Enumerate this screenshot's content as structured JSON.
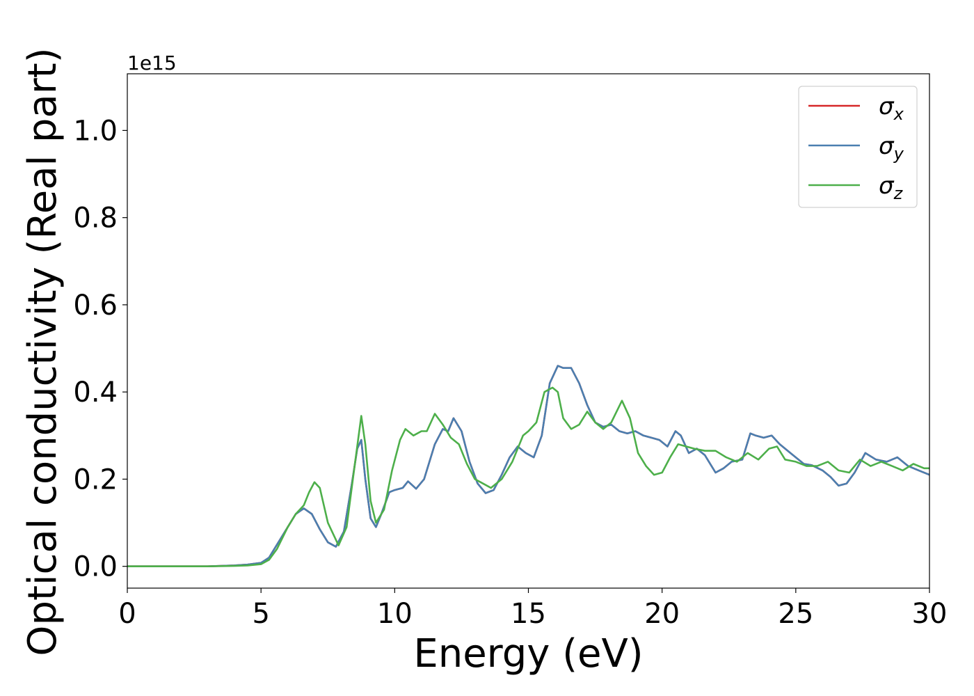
{
  "chart_data": {
    "type": "line",
    "xlabel": "Energy (eV)",
    "ylabel": "Optical conductivity (Real part)",
    "y_offset_text": "1e15",
    "xlim": [
      0,
      30
    ],
    "ylim": [
      -0.05,
      1.13
    ],
    "x_ticks": [
      0,
      5,
      10,
      15,
      20,
      25,
      30
    ],
    "x_tick_labels": [
      "0",
      "5",
      "10",
      "15",
      "20",
      "25",
      "30"
    ],
    "y_ticks": [
      0.0,
      0.2,
      0.4,
      0.6,
      0.8,
      1.0
    ],
    "y_tick_labels": [
      "0.0",
      "0.2",
      "0.4",
      "0.6",
      "0.8",
      "1.0"
    ],
    "grid": false,
    "legend_position": "top-right",
    "series": [
      {
        "name": "σx",
        "symbol": "σ",
        "subscript": "x",
        "color": "#d62728",
        "x": [
          0,
          1,
          2,
          3,
          4,
          4.5,
          5,
          5.3,
          5.6,
          6.0,
          6.3,
          6.6,
          6.9,
          7.2,
          7.5,
          7.8,
          8.1,
          8.4,
          8.6,
          8.75,
          8.9,
          9.1,
          9.3,
          9.5,
          9.8,
          10.0,
          10.3,
          10.5,
          10.8,
          11.1,
          11.5,
          11.8,
          12.0,
          12.2,
          12.5,
          12.8,
          13.1,
          13.4,
          13.7,
          14.0,
          14.3,
          14.6,
          14.9,
          15.2,
          15.5,
          15.8,
          16.1,
          16.3,
          16.6,
          16.9,
          17.2,
          17.5,
          17.8,
          18.1,
          18.4,
          18.7,
          19.0,
          19.3,
          19.6,
          19.9,
          20.2,
          20.5,
          20.7,
          21.0,
          21.3,
          21.6,
          22.0,
          22.3,
          22.6,
          23.0,
          23.3,
          23.5,
          23.8,
          24.1,
          24.4,
          24.7,
          25.0,
          25.3,
          25.6,
          26.0,
          26.3,
          26.6,
          26.9,
          27.2,
          27.6,
          28.0,
          28.4,
          28.8,
          29.2,
          29.6,
          30.0
        ],
        "values": [
          0,
          0,
          0,
          0,
          0.002,
          0.004,
          0.008,
          0.02,
          0.05,
          0.09,
          0.12,
          0.133,
          0.12,
          0.085,
          0.055,
          0.045,
          0.08,
          0.19,
          0.27,
          0.29,
          0.2,
          0.11,
          0.09,
          0.12,
          0.17,
          0.175,
          0.18,
          0.195,
          0.178,
          0.2,
          0.28,
          0.315,
          0.31,
          0.34,
          0.31,
          0.24,
          0.19,
          0.168,
          0.175,
          0.21,
          0.25,
          0.275,
          0.26,
          0.25,
          0.3,
          0.42,
          0.46,
          0.455,
          0.455,
          0.42,
          0.37,
          0.33,
          0.32,
          0.325,
          0.31,
          0.305,
          0.31,
          0.3,
          0.295,
          0.29,
          0.275,
          0.31,
          0.3,
          0.26,
          0.27,
          0.255,
          0.215,
          0.225,
          0.24,
          0.245,
          0.305,
          0.3,
          0.295,
          0.3,
          0.28,
          0.265,
          0.25,
          0.235,
          0.232,
          0.22,
          0.205,
          0.185,
          0.19,
          0.215,
          0.26,
          0.245,
          0.24,
          0.25,
          0.23,
          0.22,
          0.21
        ]
      },
      {
        "name": "σy",
        "symbol": "σ",
        "subscript": "y",
        "color": "#4a7fb0",
        "x": [
          0,
          1,
          2,
          3,
          4,
          4.5,
          5,
          5.3,
          5.6,
          6.0,
          6.3,
          6.6,
          6.9,
          7.2,
          7.5,
          7.8,
          8.1,
          8.4,
          8.6,
          8.75,
          8.9,
          9.1,
          9.3,
          9.5,
          9.8,
          10.0,
          10.3,
          10.5,
          10.8,
          11.1,
          11.5,
          11.8,
          12.0,
          12.2,
          12.5,
          12.8,
          13.1,
          13.4,
          13.7,
          14.0,
          14.3,
          14.6,
          14.9,
          15.2,
          15.5,
          15.8,
          16.1,
          16.3,
          16.6,
          16.9,
          17.2,
          17.5,
          17.8,
          18.1,
          18.4,
          18.7,
          19.0,
          19.3,
          19.6,
          19.9,
          20.2,
          20.5,
          20.7,
          21.0,
          21.3,
          21.6,
          22.0,
          22.3,
          22.6,
          23.0,
          23.3,
          23.5,
          23.8,
          24.1,
          24.4,
          24.7,
          25.0,
          25.3,
          25.6,
          26.0,
          26.3,
          26.6,
          26.9,
          27.2,
          27.6,
          28.0,
          28.4,
          28.8,
          29.2,
          29.6,
          30.0
        ],
        "values": [
          0,
          0,
          0,
          0,
          0.002,
          0.004,
          0.008,
          0.02,
          0.05,
          0.09,
          0.12,
          0.133,
          0.12,
          0.085,
          0.055,
          0.045,
          0.08,
          0.19,
          0.27,
          0.29,
          0.2,
          0.11,
          0.09,
          0.12,
          0.17,
          0.175,
          0.18,
          0.195,
          0.178,
          0.2,
          0.28,
          0.315,
          0.31,
          0.34,
          0.31,
          0.24,
          0.19,
          0.168,
          0.175,
          0.21,
          0.25,
          0.275,
          0.26,
          0.25,
          0.3,
          0.42,
          0.46,
          0.455,
          0.455,
          0.42,
          0.37,
          0.33,
          0.32,
          0.325,
          0.31,
          0.305,
          0.31,
          0.3,
          0.295,
          0.29,
          0.275,
          0.31,
          0.3,
          0.26,
          0.27,
          0.255,
          0.215,
          0.225,
          0.24,
          0.245,
          0.305,
          0.3,
          0.295,
          0.3,
          0.28,
          0.265,
          0.25,
          0.235,
          0.232,
          0.22,
          0.205,
          0.185,
          0.19,
          0.215,
          0.26,
          0.245,
          0.24,
          0.25,
          0.23,
          0.22,
          0.21
        ]
      },
      {
        "name": "σz",
        "symbol": "σ",
        "subscript": "z",
        "color": "#4daf4a",
        "x": [
          0,
          1,
          2,
          3,
          4,
          4.5,
          5,
          5.3,
          5.6,
          6.0,
          6.3,
          6.6,
          6.8,
          7.0,
          7.2,
          7.5,
          7.9,
          8.2,
          8.5,
          8.75,
          8.9,
          9.1,
          9.3,
          9.6,
          9.9,
          10.2,
          10.4,
          10.7,
          11.0,
          11.2,
          11.5,
          11.8,
          12.1,
          12.4,
          12.7,
          13.0,
          13.3,
          13.6,
          14.0,
          14.4,
          14.8,
          15.0,
          15.3,
          15.6,
          15.9,
          16.1,
          16.3,
          16.6,
          16.9,
          17.2,
          17.5,
          17.8,
          18.1,
          18.5,
          18.8,
          19.1,
          19.4,
          19.7,
          20.0,
          20.3,
          20.6,
          20.9,
          21.2,
          21.6,
          22.0,
          22.4,
          22.8,
          23.2,
          23.6,
          24.0,
          24.3,
          24.6,
          25.0,
          25.4,
          25.8,
          26.2,
          26.6,
          27.0,
          27.4,
          27.8,
          28.2,
          28.6,
          29.0,
          29.4,
          29.8,
          30.0
        ],
        "values": [
          0,
          0,
          0,
          0,
          0.001,
          0.002,
          0.005,
          0.015,
          0.04,
          0.09,
          0.12,
          0.14,
          0.17,
          0.193,
          0.18,
          0.1,
          0.048,
          0.09,
          0.23,
          0.345,
          0.28,
          0.15,
          0.1,
          0.13,
          0.22,
          0.29,
          0.315,
          0.3,
          0.31,
          0.31,
          0.35,
          0.325,
          0.295,
          0.28,
          0.235,
          0.2,
          0.19,
          0.18,
          0.2,
          0.24,
          0.3,
          0.31,
          0.33,
          0.4,
          0.41,
          0.4,
          0.34,
          0.315,
          0.325,
          0.355,
          0.33,
          0.315,
          0.33,
          0.38,
          0.34,
          0.26,
          0.23,
          0.21,
          0.215,
          0.25,
          0.28,
          0.275,
          0.27,
          0.265,
          0.265,
          0.25,
          0.24,
          0.26,
          0.245,
          0.27,
          0.275,
          0.245,
          0.24,
          0.23,
          0.23,
          0.24,
          0.22,
          0.215,
          0.245,
          0.23,
          0.24,
          0.23,
          0.22,
          0.235,
          0.225,
          0.225
        ]
      }
    ]
  }
}
